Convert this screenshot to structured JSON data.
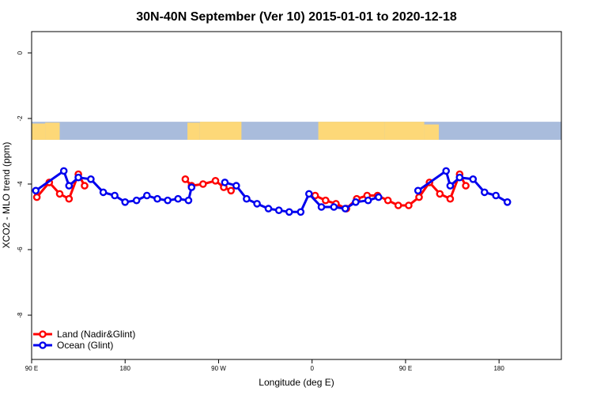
{
  "chart_data": {
    "type": "line",
    "title": "30N-40N September (Ver 10)   2015-01-01 to 2020-12-18",
    "xlabel": "Longitude (deg E)",
    "ylabel": "XCO2 - MLO trend (ppm)",
    "xlim": [
      90,
      600
    ],
    "ylim": [
      -9.35,
      0.65
    ],
    "x_ticks": [
      {
        "value": 90,
        "label": "90 E"
      },
      {
        "value": 180,
        "label": "180"
      },
      {
        "value": 270,
        "label": "90 W"
      },
      {
        "value": 360,
        "label": "0"
      },
      {
        "value": 450,
        "label": "90 E"
      },
      {
        "value": 540,
        "label": "180"
      }
    ],
    "y_ticks": [
      {
        "value": 0,
        "label": "0"
      },
      {
        "value": -2,
        "label": "-2"
      },
      {
        "value": -4,
        "label": "-4"
      },
      {
        "value": -6,
        "label": "-6"
      },
      {
        "value": -8,
        "label": "-8"
      }
    ],
    "grid": false,
    "legend_position": "bottom-left",
    "land_mask_band": {
      "y_top": -2.1,
      "y_bottom": -2.65,
      "ocean_color": "#a9bcdc",
      "land_color": "#fdd878"
    },
    "series": [
      {
        "name": "Land (Nadir&Glint)",
        "color": "#ff0000",
        "segments": [
          [
            [
              95,
              -4.4
            ],
            [
              107,
              -3.95
            ],
            [
              117,
              -4.3
            ],
            [
              126,
              -4.45
            ],
            [
              135,
              -3.7
            ],
            [
              141,
              -4.05
            ]
          ],
          [
            [
              238,
              -3.85
            ],
            [
              244,
              -4.05
            ],
            [
              255,
              -4.0
            ],
            [
              267,
              -3.9
            ],
            [
              275,
              -4.1
            ],
            [
              282,
              -4.2
            ]
          ],
          [
            [
              363,
              -4.35
            ],
            [
              373,
              -4.5
            ],
            [
              383,
              -4.6
            ],
            [
              393,
              -4.75
            ],
            [
              403,
              -4.45
            ],
            [
              413,
              -4.35
            ],
            [
              423,
              -4.35
            ],
            [
              433,
              -4.5
            ],
            [
              443,
              -4.65
            ],
            [
              453,
              -4.65
            ],
            [
              463,
              -4.4
            ],
            [
              473,
              -3.95
            ],
            [
              483,
              -4.3
            ],
            [
              493,
              -4.45
            ],
            [
              502,
              -3.7
            ],
            [
              508,
              -4.05
            ]
          ]
        ]
      },
      {
        "name": "Ocean (Glint)",
        "color": "#0000ee",
        "segments": [
          [
            [
              94,
              -4.2
            ],
            [
              121,
              -3.6
            ],
            [
              126,
              -4.05
            ],
            [
              135,
              -3.8
            ],
            [
              147,
              -3.85
            ],
            [
              159,
              -4.25
            ],
            [
              170,
              -4.35
            ],
            [
              180,
              -4.55
            ],
            [
              191,
              -4.5
            ],
            [
              201,
              -4.35
            ],
            [
              211,
              -4.45
            ],
            [
              221,
              -4.5
            ],
            [
              231,
              -4.45
            ],
            [
              241,
              -4.5
            ],
            [
              244,
              -4.1
            ]
          ],
          [
            [
              276,
              -3.95
            ],
            [
              287,
              -4.05
            ],
            [
              297,
              -4.45
            ],
            [
              307,
              -4.6
            ],
            [
              318,
              -4.75
            ],
            [
              328,
              -4.8
            ],
            [
              338,
              -4.85
            ],
            [
              349,
              -4.85
            ],
            [
              357,
              -4.3
            ],
            [
              369,
              -4.7
            ],
            [
              381,
              -4.7
            ],
            [
              392,
              -4.75
            ],
            [
              402,
              -4.55
            ],
            [
              414,
              -4.5
            ],
            [
              424,
              -4.4
            ]
          ],
          [
            [
              462,
              -4.2
            ],
            [
              489,
              -3.6
            ],
            [
              493,
              -4.05
            ],
            [
              502,
              -3.8
            ],
            [
              515,
              -3.85
            ],
            [
              526,
              -4.25
            ],
            [
              537,
              -4.35
            ],
            [
              548,
              -4.55
            ]
          ]
        ]
      }
    ]
  }
}
